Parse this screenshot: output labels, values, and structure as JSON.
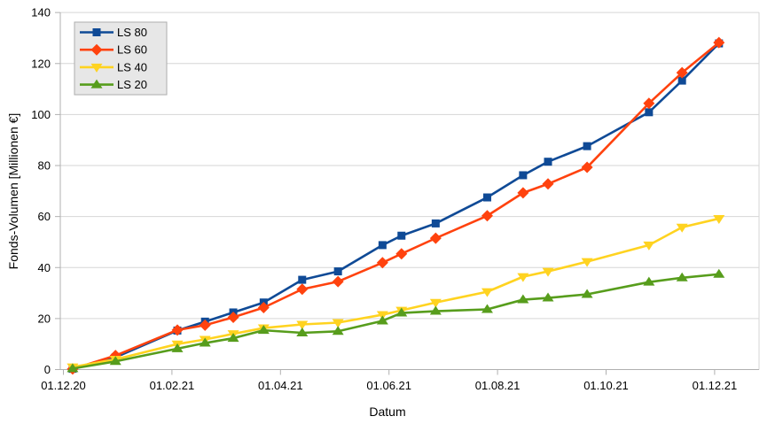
{
  "chart_data": {
    "type": "line",
    "title": "",
    "xlabel": "Datum",
    "ylabel": "Fonds-Volumen [Millionen €]",
    "grid": "horizontal",
    "x_axis": {
      "tick_labels": [
        "01.12.20",
        "01.02.21",
        "01.04.21",
        "01.06.21",
        "01.08.21",
        "01.10.21",
        "01.12.21"
      ],
      "tick_months": [
        0,
        2,
        4,
        6,
        8,
        10,
        12
      ],
      "range_months": [
        -0.12,
        12.83
      ]
    },
    "y_axis": {
      "ticks": [
        0,
        20,
        40,
        60,
        80,
        100,
        120,
        140
      ],
      "ylim": [
        0,
        140
      ]
    },
    "legend": {
      "position": "top-left",
      "entries": [
        "LS 80",
        "LS 60",
        "LS 40",
        "LS 20"
      ]
    },
    "x_months": [
      0.17,
      0.96,
      2.1,
      2.61,
      3.13,
      3.69,
      4.4,
      5.06,
      5.88,
      6.23,
      6.86,
      7.81,
      8.47,
      8.93,
      9.65,
      10.79,
      11.4,
      12.08
    ],
    "series": [
      {
        "name": "LS 80",
        "marker": "square",
        "color": "#0f4a96",
        "values": [
          0.3,
          4.8,
          15.3,
          18.8,
          22.4,
          26.3,
          35.2,
          38.5,
          48.8,
          52.5,
          57.3,
          67.5,
          76.2,
          81.5,
          87.6,
          100.9,
          113.3,
          127.9
        ]
      },
      {
        "name": "LS 60",
        "marker": "diamond",
        "color": "#ff420e",
        "values": [
          0.2,
          5.5,
          15.5,
          17.4,
          20.5,
          24.3,
          31.5,
          34.5,
          41.9,
          45.4,
          51.5,
          60.3,
          69.3,
          72.8,
          79.3,
          104.4,
          116.4,
          128.2
        ]
      },
      {
        "name": "LS 40",
        "marker": "triangle-down",
        "color": "#ffd320",
        "values": [
          1.0,
          4.0,
          10.0,
          11.8,
          14.0,
          16.3,
          17.7,
          18.4,
          21.5,
          23.2,
          26.3,
          30.5,
          36.4,
          38.5,
          42.3,
          48.8,
          55.8,
          59.2
        ]
      },
      {
        "name": "LS 20",
        "marker": "triangle-up",
        "color": "#579d1c",
        "values": [
          0.4,
          3.2,
          8.2,
          10.4,
          12.3,
          15.4,
          14.4,
          15.0,
          19.1,
          22.2,
          22.9,
          23.6,
          27.4,
          28.1,
          29.5,
          34.3,
          36.0,
          37.4
        ]
      }
    ],
    "colors": {
      "gridline": "#d6d6d6",
      "axis_line": "#b0b0b0",
      "legend_bg": "#e7e7e7",
      "legend_border": "#adadad",
      "text": "#000000"
    }
  }
}
